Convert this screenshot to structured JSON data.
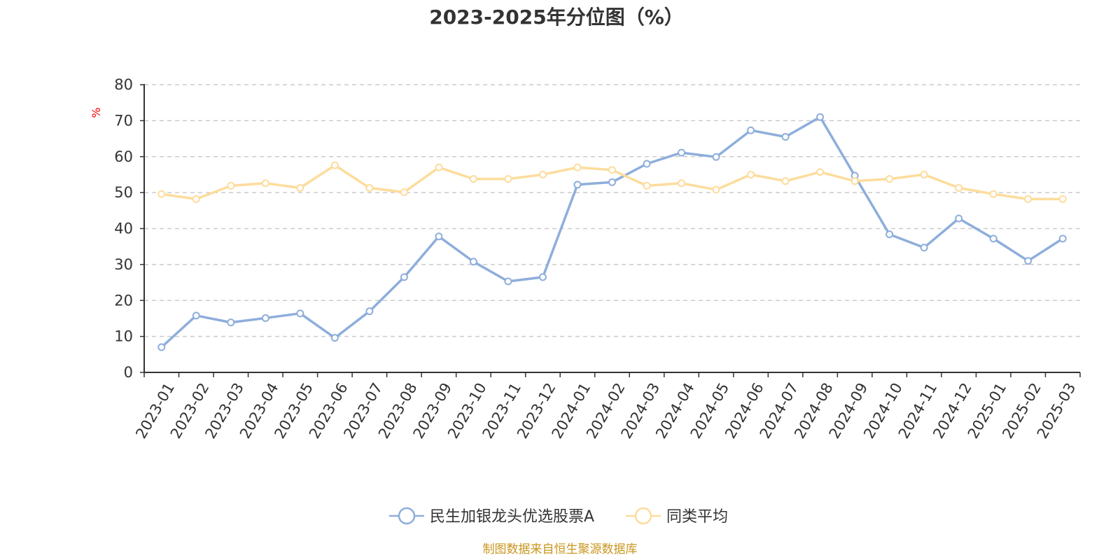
{
  "title": "2023-2025年分位图（%）",
  "source": "制图数据来自恒生聚源数据库",
  "colors": {
    "fund": "#8eaedb",
    "peer": "#fddc9c",
    "grid": "#cccccc",
    "axis": "#333333"
  },
  "chart_data": {
    "type": "line",
    "title": "2023-2025年分位图（%）",
    "xlabel": "",
    "ylabel": "%",
    "ylim": [
      0,
      80
    ],
    "yticks": [
      0,
      10,
      20,
      30,
      40,
      50,
      60,
      70,
      80
    ],
    "grid": true,
    "legend_position": "bottom-center",
    "categories": [
      "2023-01",
      "2023-02",
      "2023-03",
      "2023-04",
      "2023-05",
      "2023-06",
      "2023-07",
      "2023-08",
      "2023-09",
      "2023-10",
      "2023-11",
      "2023-12",
      "2024-01",
      "2024-02",
      "2024-03",
      "2024-04",
      "2024-05",
      "2024-06",
      "2024-07",
      "2024-08",
      "2024-09",
      "2024-10",
      "2024-11",
      "2024-12",
      "2025-01",
      "2025-02",
      "2025-03"
    ],
    "series": [
      {
        "name": "民生加银龙头优选股票A",
        "color": "#8eaedb",
        "values": [
          7.0,
          15.8,
          13.9,
          15.1,
          16.4,
          9.6,
          17.0,
          26.5,
          37.8,
          30.8,
          25.3,
          26.5,
          52.2,
          52.9,
          58.0,
          61.1,
          59.9,
          67.3,
          65.5,
          71.0,
          54.7,
          38.4,
          34.7,
          42.8,
          37.2,
          31.0,
          37.2
        ]
      },
      {
        "name": "同类平均",
        "color": "#fddc9c",
        "values": [
          49.6,
          48.2,
          51.9,
          52.6,
          51.3,
          57.6,
          51.3,
          50.1,
          57.0,
          53.8,
          53.8,
          55.0,
          57.0,
          56.3,
          51.9,
          52.6,
          50.8,
          55.0,
          53.2,
          55.7,
          53.2,
          53.8,
          55.0,
          51.3,
          49.6,
          48.2,
          48.2
        ]
      }
    ]
  }
}
